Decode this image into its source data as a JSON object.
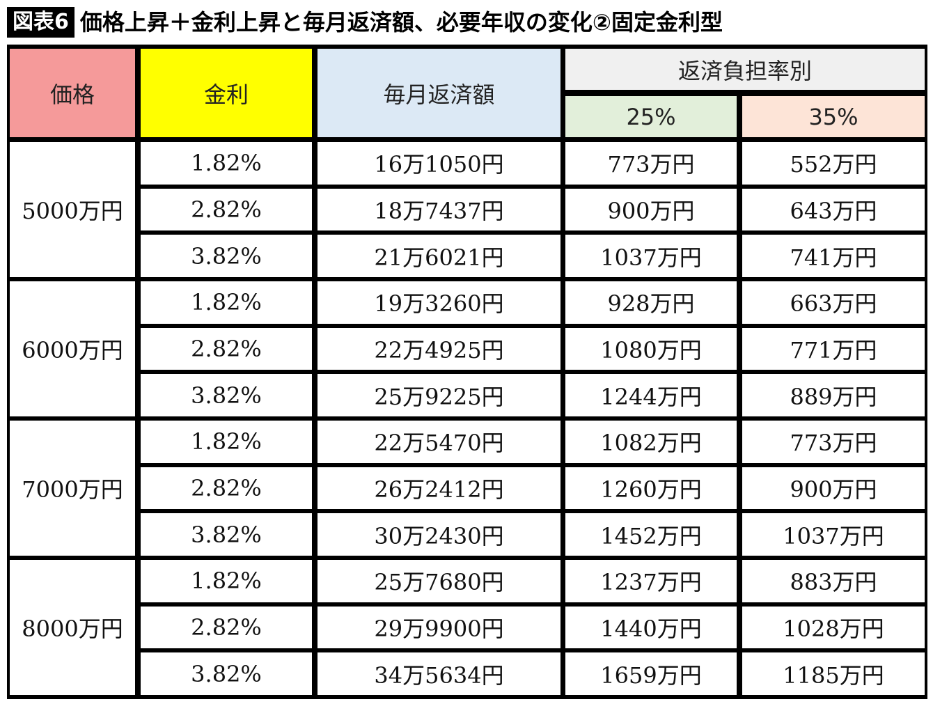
{
  "figure_label": "図表6",
  "title": "価格上昇＋金利上昇と毎月返済額、必要年収の変化②固定金利型",
  "colors": {
    "price_header": "#f59a9a",
    "rate_header": "#ffff00",
    "payment_header": "#dce9f5",
    "burden_header": "#f0f0f0",
    "pct25_header": "#e2efda",
    "pct35_header": "#fde4d7"
  },
  "chart_data": {
    "type": "table",
    "headers": {
      "price": "価格",
      "rate": "金利",
      "payment": "毎月返済額",
      "burden": "返済負担率別",
      "pct25": "25%",
      "pct35": "35%"
    },
    "groups": [
      {
        "price": "5000万円",
        "rows": [
          {
            "rate": "1.82%",
            "payment": "16万1050円",
            "pct25": "773万円",
            "pct35": "552万円"
          },
          {
            "rate": "2.82%",
            "payment": "18万7437円",
            "pct25": "900万円",
            "pct35": "643万円"
          },
          {
            "rate": "3.82%",
            "payment": "21万6021円",
            "pct25": "1037万円",
            "pct35": "741万円"
          }
        ]
      },
      {
        "price": "6000万円",
        "rows": [
          {
            "rate": "1.82%",
            "payment": "19万3260円",
            "pct25": "928万円",
            "pct35": "663万円"
          },
          {
            "rate": "2.82%",
            "payment": "22万4925円",
            "pct25": "1080万円",
            "pct35": "771万円"
          },
          {
            "rate": "3.82%",
            "payment": "25万9225円",
            "pct25": "1244万円",
            "pct35": "889万円"
          }
        ]
      },
      {
        "price": "7000万円",
        "rows": [
          {
            "rate": "1.82%",
            "payment": "22万5470円",
            "pct25": "1082万円",
            "pct35": "773万円"
          },
          {
            "rate": "2.82%",
            "payment": "26万2412円",
            "pct25": "1260万円",
            "pct35": "900万円"
          },
          {
            "rate": "3.82%",
            "payment": "30万2430円",
            "pct25": "1452万円",
            "pct35": "1037万円"
          }
        ]
      },
      {
        "price": "8000万円",
        "rows": [
          {
            "rate": "1.82%",
            "payment": "25万7680円",
            "pct25": "1237万円",
            "pct35": "883万円"
          },
          {
            "rate": "2.82%",
            "payment": "29万9900円",
            "pct25": "1440万円",
            "pct35": "1028万円"
          },
          {
            "rate": "3.82%",
            "payment": "34万5634円",
            "pct25": "1659万円",
            "pct35": "1185万円"
          }
        ]
      }
    ]
  }
}
